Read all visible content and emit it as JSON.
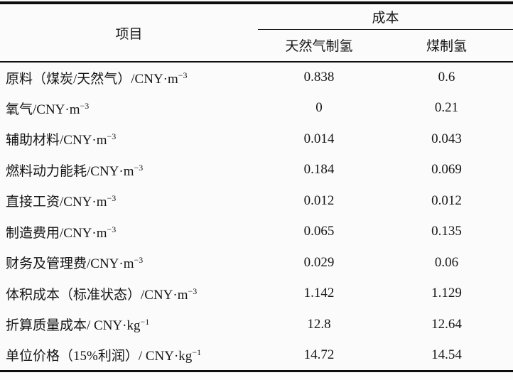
{
  "page": {
    "background": "#fbfbfb",
    "text_color": "#161616",
    "rule_color": "#0c0c0c"
  },
  "table": {
    "col1_header": "项目",
    "group_header": "成本",
    "sub_headers": [
      "天然气制氢",
      "煤制氢"
    ],
    "rows": [
      {
        "item": "原料（煤炭/天然气）/CNY·m",
        "sup": "−3",
        "values": [
          "0.838",
          "0.6"
        ]
      },
      {
        "item": "氧气/CNY·m",
        "sup": "−3",
        "values": [
          "0",
          "0.21"
        ]
      },
      {
        "item": "辅助材料/CNY·m",
        "sup": "−3",
        "values": [
          "0.014",
          "0.043"
        ]
      },
      {
        "item": "燃料动力能耗/CNY·m",
        "sup": "−3",
        "values": [
          "0.184",
          "0.069"
        ]
      },
      {
        "item": "直接工资/CNY·m",
        "sup": "−3",
        "values": [
          "0.012",
          "0.012"
        ]
      },
      {
        "item": "制造费用/CNY·m",
        "sup": "−3",
        "values": [
          "0.065",
          "0.135"
        ]
      },
      {
        "item": "财务及管理费/CNY·m",
        "sup": "−3",
        "values": [
          "0.029",
          "0.06"
        ]
      },
      {
        "item": "体积成本（标准状态）/CNY·m",
        "sup": "−3",
        "values": [
          "1.142",
          "1.129"
        ]
      },
      {
        "item": "折算质量成本/ CNY·kg",
        "sup": "−1",
        "values": [
          "12.8",
          "12.64"
        ]
      },
      {
        "item": "单位价格（15%利润）/ CNY·kg",
        "sup": "−1",
        "values": [
          "14.72",
          "14.54"
        ]
      }
    ]
  },
  "chart_data": {
    "type": "table",
    "title": "",
    "columns": [
      "项目",
      "成本-天然气制氢",
      "成本-煤制氢"
    ],
    "rows_items": [
      "原料（煤炭/天然气）/CNY·m⁻³",
      "氧气/CNY·m⁻³",
      "辅助材料/CNY·m⁻³",
      "燃料动力能耗/CNY·m⁻³",
      "直接工资/CNY·m⁻³",
      "制造费用/CNY·m⁻³",
      "财务及管理费/CNY·m⁻³",
      "体积成本（标准状态）/CNY·m⁻³",
      "折算质量成本/ CNY·kg⁻¹",
      "单位价格（15%利润）/ CNY·kg⁻¹"
    ],
    "series": [
      {
        "name": "天然气制氢",
        "values": [
          0.838,
          0,
          0.014,
          0.184,
          0.012,
          0.065,
          0.029,
          1.142,
          12.8,
          14.72
        ]
      },
      {
        "name": "煤制氢",
        "values": [
          0.6,
          0.21,
          0.043,
          0.069,
          0.012,
          0.135,
          0.06,
          1.129,
          12.64,
          14.54
        ]
      }
    ]
  }
}
